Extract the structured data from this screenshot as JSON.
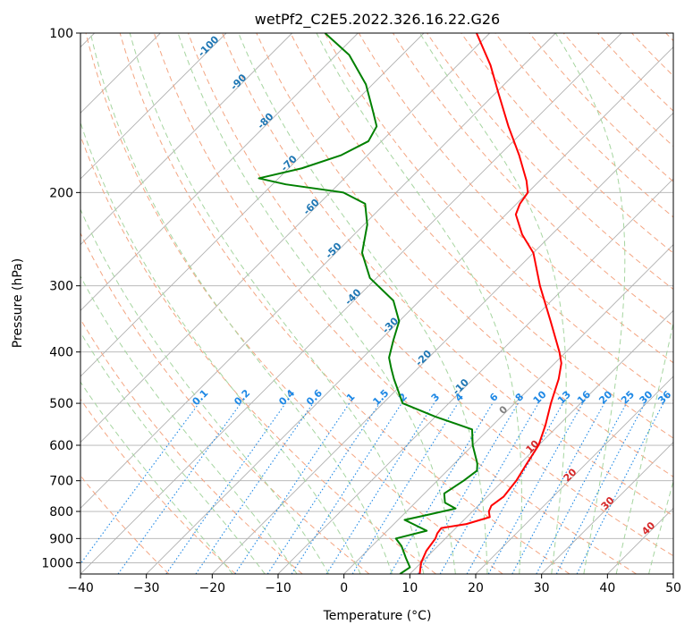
{
  "chart_data": {
    "type": "line",
    "title": "wetPf2_C2E5.2022.326.16.22.G26",
    "xlabel": "Temperature (°C)",
    "ylabel": "Pressure (hPa)",
    "xlim": [
      -40,
      50
    ],
    "ylim": [
      1050,
      100
    ],
    "y_scale": "log",
    "grid": true,
    "skew_degrees": 45,
    "x_ticks": [
      -40,
      -30,
      -20,
      -10,
      0,
      10,
      20,
      30,
      40,
      50
    ],
    "y_ticks": [
      100,
      200,
      300,
      400,
      500,
      600,
      700,
      800,
      900,
      1000
    ],
    "series": [
      {
        "color": "#ff0000",
        "points": [
          [
            1050,
            11.5
          ],
          [
            1000,
            10.0
          ],
          [
            950,
            9.0
          ],
          [
            900,
            8.5
          ],
          [
            880,
            8.0
          ],
          [
            860,
            7.8
          ],
          [
            845,
            11.0
          ],
          [
            820,
            13.5
          ],
          [
            800,
            12.5
          ],
          [
            780,
            12.0
          ],
          [
            750,
            12.5
          ],
          [
            700,
            12.0
          ],
          [
            650,
            11.0
          ],
          [
            600,
            10.0
          ],
          [
            550,
            8.0
          ],
          [
            500,
            5.5
          ],
          [
            450,
            3.0
          ],
          [
            420,
            1.0
          ],
          [
            400,
            -1.0
          ],
          [
            350,
            -7.0
          ],
          [
            300,
            -14.0
          ],
          [
            260,
            -20.0
          ],
          [
            240,
            -24.5
          ],
          [
            220,
            -28.5
          ],
          [
            210,
            -29.5
          ],
          [
            200,
            -30.0
          ],
          [
            190,
            -32.0
          ],
          [
            170,
            -37.0
          ],
          [
            150,
            -43.0
          ],
          [
            130,
            -49.5
          ],
          [
            115,
            -55.0
          ],
          [
            100,
            -62.0
          ]
        ]
      },
      {
        "color": "#008000",
        "points": [
          [
            1050,
            8.5
          ],
          [
            1020,
            9.0
          ],
          [
            980,
            7.0
          ],
          [
            930,
            4.5
          ],
          [
            900,
            2.5
          ],
          [
            870,
            6.0
          ],
          [
            830,
            1.0
          ],
          [
            810,
            4.0
          ],
          [
            790,
            7.0
          ],
          [
            770,
            4.5
          ],
          [
            740,
            3.0
          ],
          [
            700,
            4.0
          ],
          [
            670,
            4.5
          ],
          [
            650,
            3.5
          ],
          [
            600,
            0.0
          ],
          [
            560,
            -2.5
          ],
          [
            530,
            -10.0
          ],
          [
            500,
            -17.0
          ],
          [
            450,
            -22.0
          ],
          [
            430,
            -24.0
          ],
          [
            410,
            -26.0
          ],
          [
            380,
            -28.0
          ],
          [
            350,
            -30.0
          ],
          [
            320,
            -34.0
          ],
          [
            290,
            -41.0
          ],
          [
            260,
            -46.0
          ],
          [
            230,
            -49.5
          ],
          [
            210,
            -53.0
          ],
          [
            200,
            -58.0
          ],
          [
            193,
            -68.0
          ],
          [
            188,
            -73.0
          ],
          [
            180,
            -68.0
          ],
          [
            170,
            -64.0
          ],
          [
            160,
            -62.0
          ],
          [
            150,
            -63.0
          ],
          [
            140,
            -66.0
          ],
          [
            125,
            -71.0
          ],
          [
            110,
            -78.0
          ],
          [
            100,
            -85.0
          ]
        ]
      }
    ],
    "dry_adiabats_label": [
      -100,
      -90,
      -80,
      -70,
      -60,
      -50,
      -40,
      -30,
      -20,
      -10
    ],
    "moist_adiabats_label": [
      0,
      10,
      20,
      30,
      40
    ],
    "mixing_ratios_label": [
      "0.1",
      "0.2",
      "0.4",
      "0.6",
      "1",
      "1.5",
      "2",
      "3",
      "4",
      "6",
      "8",
      "10",
      "13",
      "16",
      "20",
      "25",
      "30",
      "36"
    ],
    "colors": {
      "temperature": "#ff0000",
      "dewpoint": "#008000",
      "dry_adiabat": "#f4a582",
      "moist_adiabat": "#a6d5a0",
      "mixing_ratio": "#1e88e5",
      "isotherm": "#b0b0b0",
      "dry_adiabat_label": "#1f77b4",
      "moist_adiabat_label": "#d62728",
      "moist_adiabat_zero_label": "#808080"
    }
  }
}
